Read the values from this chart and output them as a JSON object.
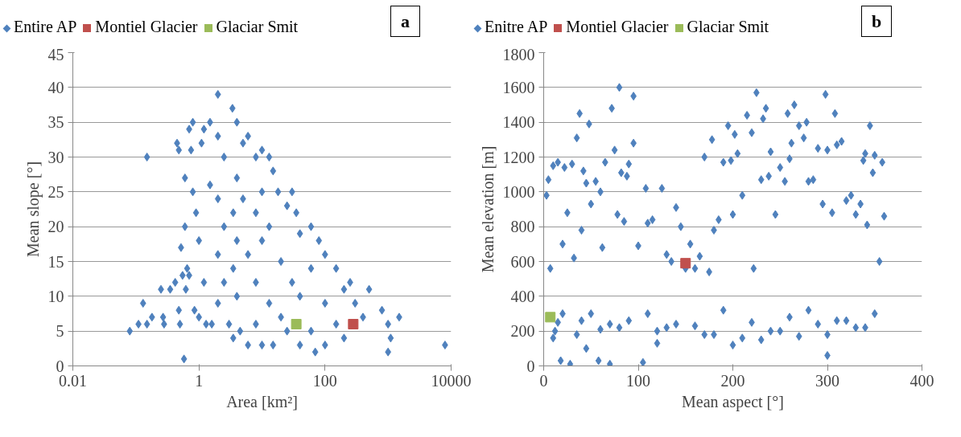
{
  "chart_data": [
    {
      "type": "scatter",
      "xlabel": "Area [km²]",
      "ylabel": "Mean slope [°]",
      "log": "x",
      "xlim": [
        0.01,
        10000
      ],
      "ylim": [
        0,
        45
      ],
      "xticks": [
        0.01,
        1,
        100,
        10000
      ],
      "yticks": [
        0,
        5,
        10,
        15,
        20,
        25,
        30,
        35,
        40,
        45
      ],
      "grid": "y",
      "legend": "top",
      "annotations": [
        "a"
      ],
      "series": [
        {
          "name": "Entire AP",
          "color": "#4f81bd",
          "marker": "diamond",
          "x": [
            0.08,
            0.11,
            0.13,
            0.15,
            0.15,
            0.18,
            0.25,
            0.27,
            0.28,
            0.35,
            0.42,
            0.45,
            0.48,
            0.48,
            0.5,
            0.52,
            0.55,
            0.58,
            0.6,
            0.6,
            0.62,
            0.65,
            0.7,
            0.7,
            0.75,
            0.8,
            0.8,
            0.85,
            0.9,
            1.0,
            1.0,
            1.1,
            1.2,
            1.2,
            1.3,
            1.5,
            1.5,
            1.6,
            2,
            2,
            2,
            2,
            2,
            2.5,
            2.5,
            2.5,
            3,
            3.4,
            3.5,
            3.5,
            3.5,
            4,
            4,
            4,
            4,
            4.5,
            5,
            5,
            6,
            6,
            6,
            8,
            8,
            8,
            8,
            10,
            10,
            10,
            10,
            13,
            13,
            13,
            15,
            15,
            18,
            20,
            20,
            25,
            25,
            30,
            30,
            35,
            40,
            40,
            40,
            60,
            60,
            60,
            70,
            80,
            100,
            100,
            100,
            150,
            150,
            200,
            200,
            250,
            300,
            400,
            500,
            800,
            1000,
            1000,
            1100,
            1500,
            8000
          ],
          "values": [
            5,
            6,
            9,
            30,
            6,
            7,
            11,
            7,
            6,
            11,
            12,
            32,
            31,
            8,
            6,
            17,
            13,
            1,
            27,
            20,
            11,
            14,
            34,
            13,
            31,
            35,
            25,
            8,
            22,
            18,
            7,
            32,
            34,
            12,
            6,
            35,
            26,
            6,
            39,
            33,
            24,
            16,
            9,
            30,
            20,
            12,
            6,
            37,
            22,
            14,
            4,
            35,
            27,
            18,
            10,
            5,
            32,
            24,
            33,
            16,
            3,
            30,
            22,
            12,
            6,
            31,
            25,
            18,
            3,
            30,
            20,
            9,
            28,
            3,
            25,
            15,
            7,
            23,
            5,
            25,
            12,
            22,
            19,
            10,
            3,
            20,
            14,
            5,
            2,
            18,
            16,
            9,
            3,
            14,
            6,
            11,
            4,
            12,
            9,
            7,
            11,
            8,
            6,
            2,
            4,
            7,
            3
          ]
        },
        {
          "name": "Montiel Glacier",
          "color": "#c0504d",
          "marker": "square",
          "x": [
            280
          ],
          "values": [
            6
          ]
        },
        {
          "name": "Glaciar Smit",
          "color": "#9bbb59",
          "marker": "square",
          "x": [
            35
          ],
          "values": [
            6
          ]
        }
      ]
    },
    {
      "type": "scatter",
      "xlabel": "Mean aspect [°]",
      "ylabel": "Mean elevation [m]",
      "xlim": [
        0,
        400
      ],
      "ylim": [
        0,
        1800
      ],
      "xticks": [
        0,
        100,
        200,
        300,
        400
      ],
      "yticks": [
        0,
        200,
        400,
        600,
        800,
        1000,
        1200,
        1400,
        1600,
        1800
      ],
      "grid": "y",
      "legend": "top",
      "annotations": [
        "b"
      ],
      "series": [
        {
          "name": "Enitre AP",
          "color": "#4f81bd",
          "marker": "diamond",
          "x": [
            3,
            5,
            7,
            10,
            12,
            15,
            18,
            20,
            22,
            25,
            28,
            30,
            32,
            35,
            38,
            40,
            42,
            45,
            48,
            50,
            55,
            58,
            60,
            62,
            65,
            70,
            72,
            75,
            78,
            80,
            82,
            85,
            88,
            90,
            95,
            95,
            100,
            105,
            108,
            110,
            115,
            120,
            125,
            130,
            135,
            140,
            145,
            150,
            155,
            160,
            165,
            170,
            175,
            178,
            180,
            185,
            190,
            195,
            198,
            200,
            202,
            205,
            210,
            215,
            220,
            222,
            225,
            230,
            232,
            235,
            238,
            240,
            245,
            250,
            255,
            258,
            260,
            262,
            265,
            270,
            275,
            278,
            280,
            285,
            290,
            295,
            298,
            300,
            305,
            308,
            310,
            315,
            320,
            325,
            330,
            335,
            338,
            340,
            342,
            345,
            348,
            350,
            355,
            358,
            360,
            10,
            40,
            70,
            130,
            170,
            210,
            250,
            290,
            330,
            20,
            60,
            110,
            160,
            230,
            270,
            320,
            15,
            35,
            50,
            80,
            90,
            120,
            140,
            180,
            190,
            220,
            240,
            260,
            280,
            300,
            310,
            340,
            350,
            45,
            200,
            300
          ],
          "values": [
            980,
            1070,
            560,
            1150,
            200,
            1170,
            30,
            700,
            1140,
            880,
            10,
            1160,
            620,
            1310,
            1450,
            780,
            1120,
            1050,
            1390,
            930,
            1060,
            30,
            1000,
            680,
            1170,
            10,
            1480,
            1240,
            870,
            1600,
            1110,
            830,
            1090,
            1160,
            1550,
            1280,
            690,
            20,
            1020,
            820,
            840,
            130,
            1020,
            640,
            600,
            910,
            800,
            560,
            700,
            560,
            630,
            1200,
            540,
            1300,
            780,
            840,
            1170,
            1380,
            1180,
            870,
            1330,
            1220,
            980,
            1440,
            1340,
            560,
            1570,
            1070,
            1420,
            1480,
            1090,
            1230,
            870,
            1140,
            1060,
            1450,
            1190,
            1280,
            1500,
            1380,
            1310,
            1400,
            1060,
            1070,
            1250,
            930,
            1560,
            1240,
            880,
            1450,
            1270,
            1290,
            950,
            980,
            870,
            930,
            1180,
            1220,
            810,
            1380,
            1110,
            1210,
            600,
            1170,
            860,
            160,
            260,
            240,
            220,
            180,
            160,
            200,
            240,
            220,
            300,
            210,
            300,
            230,
            150,
            170,
            260,
            250,
            180,
            300,
            220,
            260,
            200,
            240,
            180,
            320,
            250,
            200,
            280,
            320,
            180,
            260,
            220,
            300,
            100,
            120,
            60
          ]
        },
        {
          "name": "Montiel Glacier",
          "color": "#c0504d",
          "marker": "square",
          "x": [
            150
          ],
          "values": [
            590
          ]
        },
        {
          "name": "Glaciar Smit",
          "color": "#9bbb59",
          "marker": "square",
          "x": [
            7
          ],
          "values": [
            280
          ]
        }
      ]
    }
  ]
}
